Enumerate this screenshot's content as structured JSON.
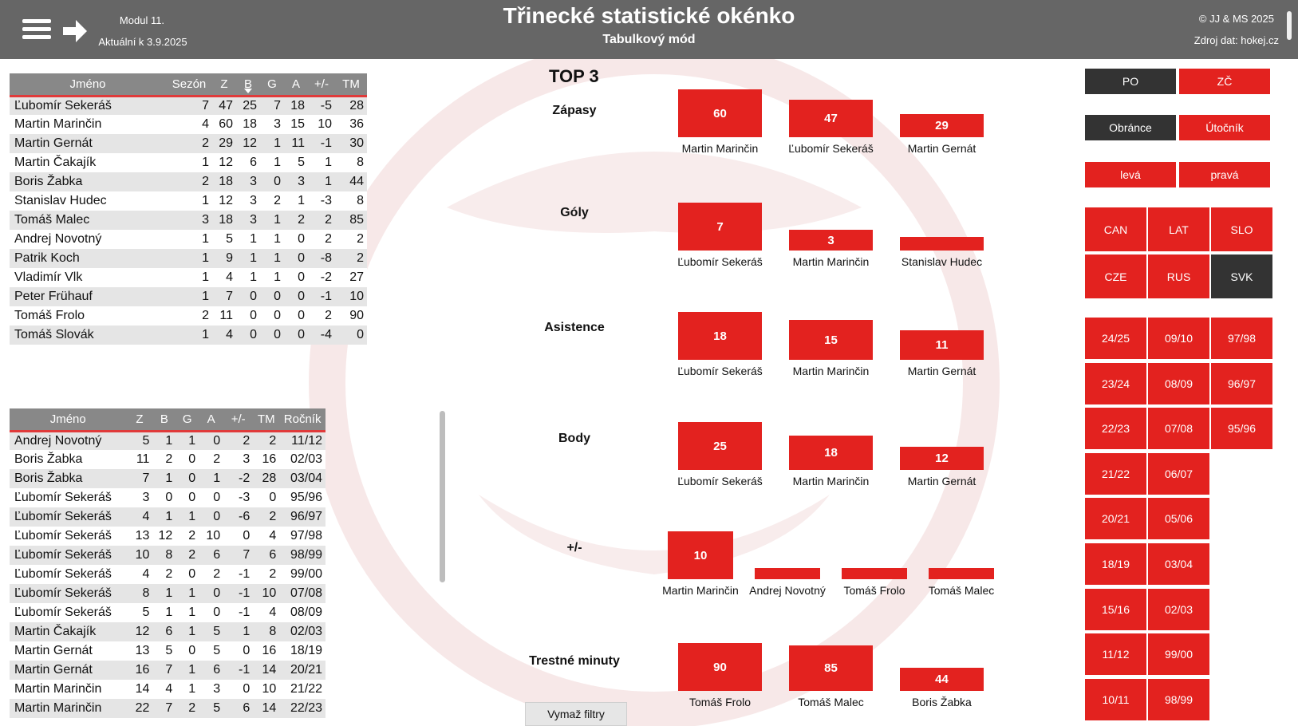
{
  "header": {
    "module": "Modul 11.",
    "date": "Aktuální k 3.9.2025",
    "title": "Třinecké statistické okénko",
    "subtitle": "Tabulkový mód",
    "copyright": "© JJ & MS 2025",
    "source": "Zdroj dat: hokej.cz"
  },
  "table1": {
    "headers": [
      "Jméno",
      "Sezón",
      "Z",
      "B",
      "G",
      "A",
      "+/-",
      "TM"
    ],
    "rows": [
      [
        "Ľubomír Sekeráš",
        "7",
        "47",
        "25",
        "7",
        "18",
        "-5",
        "28"
      ],
      [
        "Martin Marinčin",
        "4",
        "60",
        "18",
        "3",
        "15",
        "10",
        "36"
      ],
      [
        "Martin Gernát",
        "2",
        "29",
        "12",
        "1",
        "11",
        "-1",
        "30"
      ],
      [
        "Martin Čakajík",
        "1",
        "12",
        "6",
        "1",
        "5",
        "1",
        "8"
      ],
      [
        "Boris Žabka",
        "2",
        "18",
        "3",
        "0",
        "3",
        "1",
        "44"
      ],
      [
        "Stanislav Hudec",
        "1",
        "12",
        "3",
        "2",
        "1",
        "-3",
        "8"
      ],
      [
        "Tomáš Malec",
        "3",
        "18",
        "3",
        "1",
        "2",
        "2",
        "85"
      ],
      [
        "Andrej Novotný",
        "1",
        "5",
        "1",
        "1",
        "0",
        "2",
        "2"
      ],
      [
        "Patrik Koch",
        "1",
        "9",
        "1",
        "1",
        "0",
        "-8",
        "2"
      ],
      [
        "Vladimír Vlk",
        "1",
        "4",
        "1",
        "1",
        "0",
        "-2",
        "27"
      ],
      [
        "Peter Frühauf",
        "1",
        "7",
        "0",
        "0",
        "0",
        "-1",
        "10"
      ],
      [
        "Tomáš Frolo",
        "2",
        "11",
        "0",
        "0",
        "0",
        "2",
        "90"
      ],
      [
        "Tomáš Slovák",
        "1",
        "4",
        "0",
        "0",
        "0",
        "-4",
        "0"
      ]
    ]
  },
  "table2": {
    "headers": [
      "Jméno",
      "Z",
      "B",
      "G",
      "A",
      "+/-",
      "TM",
      "Ročník"
    ],
    "rows": [
      [
        "Andrej Novotný",
        "5",
        "1",
        "1",
        "0",
        "2",
        "2",
        "11/12"
      ],
      [
        "Boris Žabka",
        "11",
        "2",
        "0",
        "2",
        "3",
        "16",
        "02/03"
      ],
      [
        "Boris Žabka",
        "7",
        "1",
        "0",
        "1",
        "-2",
        "28",
        "03/04"
      ],
      [
        "Ľubomír Sekeráš",
        "3",
        "0",
        "0",
        "0",
        "-3",
        "0",
        "95/96"
      ],
      [
        "Ľubomír Sekeráš",
        "4",
        "1",
        "1",
        "0",
        "-6",
        "2",
        "96/97"
      ],
      [
        "Ľubomír Sekeráš",
        "13",
        "12",
        "2",
        "10",
        "0",
        "4",
        "97/98"
      ],
      [
        "Ľubomír Sekeráš",
        "10",
        "8",
        "2",
        "6",
        "7",
        "6",
        "98/99"
      ],
      [
        "Ľubomír Sekeráš",
        "4",
        "2",
        "0",
        "2",
        "-1",
        "2",
        "99/00"
      ],
      [
        "Ľubomír Sekeráš",
        "8",
        "1",
        "1",
        "0",
        "-1",
        "10",
        "07/08"
      ],
      [
        "Ľubomír Sekeráš",
        "5",
        "1",
        "1",
        "0",
        "-1",
        "4",
        "08/09"
      ],
      [
        "Martin Čakajík",
        "12",
        "6",
        "1",
        "5",
        "1",
        "8",
        "02/03"
      ],
      [
        "Martin Gernát",
        "13",
        "5",
        "0",
        "5",
        "0",
        "16",
        "18/19"
      ],
      [
        "Martin Gernát",
        "16",
        "7",
        "1",
        "6",
        "-1",
        "14",
        "20/21"
      ],
      [
        "Martin Marinčin",
        "14",
        "4",
        "1",
        "3",
        "0",
        "10",
        "21/22"
      ],
      [
        "Martin Marinčin",
        "22",
        "7",
        "2",
        "5",
        "6",
        "14",
        "22/23"
      ]
    ]
  },
  "top3": {
    "title": "TOP 3",
    "categories": [
      {
        "label": "Zápasy",
        "entries": [
          {
            "name": "Martin Marinčin",
            "value": 60,
            "label": "60"
          },
          {
            "name": "Ľubomír Sekeráš",
            "value": 47,
            "label": "47"
          },
          {
            "name": "Martin Gernát",
            "value": 29,
            "label": "29"
          }
        ]
      },
      {
        "label": "Góly",
        "entries": [
          {
            "name": "Ľubomír Sekeráš",
            "value": 7,
            "label": "7"
          },
          {
            "name": "Martin Marinčin",
            "value": 3,
            "label": "3"
          },
          {
            "name": "Stanislav Hudec",
            "value": 2,
            "label": ""
          }
        ]
      },
      {
        "label": "Asistence",
        "entries": [
          {
            "name": "Ľubomír Sekeráš",
            "value": 18,
            "label": "18"
          },
          {
            "name": "Martin Marinčin",
            "value": 15,
            "label": "15"
          },
          {
            "name": "Martin Gernát",
            "value": 11,
            "label": "11"
          }
        ]
      },
      {
        "label": "Body",
        "entries": [
          {
            "name": "Ľubomír Sekeráš",
            "value": 25,
            "label": "25"
          },
          {
            "name": "Martin Marinčin",
            "value": 18,
            "label": "18"
          },
          {
            "name": "Martin Gernát",
            "value": 12,
            "label": "12"
          }
        ]
      },
      {
        "label": "+/-",
        "entries": [
          {
            "name": "Martin Marinčin",
            "value": 10,
            "label": "10"
          },
          {
            "name": "Andrej Novotný",
            "value": 2,
            "label": ""
          },
          {
            "name": "Tomáš Frolo",
            "value": 2,
            "label": ""
          },
          {
            "name": "Tomáš Malec",
            "value": 2,
            "label": ""
          }
        ]
      },
      {
        "label": "Trestné minuty",
        "entries": [
          {
            "name": "Tomáš Frolo",
            "value": 90,
            "label": "90"
          },
          {
            "name": "Tomáš Malec",
            "value": 85,
            "label": "85"
          },
          {
            "name": "Boris Žabka",
            "value": 44,
            "label": "44"
          }
        ]
      }
    ],
    "clear_label": "Vymaž filtry"
  },
  "filters": {
    "league": [
      {
        "label": "PO",
        "active": true
      },
      {
        "label": "ZČ",
        "active": false
      }
    ],
    "position": [
      {
        "label": "Obránce",
        "active": true
      },
      {
        "label": "Útočník",
        "active": false
      }
    ],
    "side": [
      {
        "label": "levá",
        "active": false
      },
      {
        "label": "pravá",
        "active": false
      }
    ],
    "nations": [
      {
        "label": "CAN",
        "active": false
      },
      {
        "label": "LAT",
        "active": false
      },
      {
        "label": "SLO",
        "active": false
      },
      {
        "label": "CZE",
        "active": false
      },
      {
        "label": "RUS",
        "active": false
      },
      {
        "label": "SVK",
        "active": true
      }
    ],
    "seasons": [
      [
        "24/25",
        "09/10",
        "97/98"
      ],
      [
        "23/24",
        "08/09",
        "96/97"
      ],
      [
        "22/23",
        "07/08",
        "95/96"
      ],
      [
        "21/22",
        "06/07"
      ],
      [
        "20/21",
        "05/06"
      ],
      [
        "18/19",
        "03/04"
      ],
      [
        "15/16",
        "02/03"
      ],
      [
        "11/12",
        "99/00"
      ],
      [
        "10/11",
        "98/99"
      ]
    ]
  },
  "colors": {
    "accent": "#e3221f",
    "header": "#666666",
    "dark_button": "#333333"
  }
}
